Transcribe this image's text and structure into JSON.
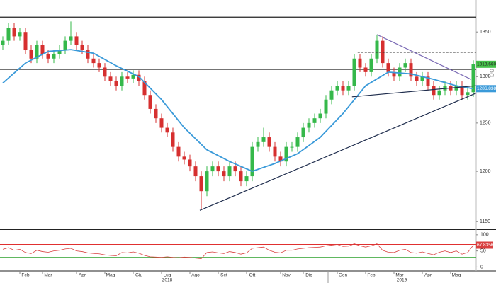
{
  "chart_data": {
    "type": "candlestick",
    "log_scale": true,
    "scale_label": "Log",
    "categories": [
      null,
      null,
      null,
      null,
      "Feb",
      null,
      null,
      null,
      "Mar",
      null,
      null,
      null,
      null,
      null,
      "Apr",
      null,
      null,
      null,
      null,
      "Mag",
      null,
      null,
      null,
      null,
      "Giu",
      null,
      null,
      null,
      null,
      "Lug",
      null,
      null,
      null,
      null,
      "Ago",
      null,
      null,
      null,
      null,
      "Set",
      null,
      null,
      null,
      null,
      "Ott",
      null,
      null,
      null,
      null,
      null,
      "Nov",
      null,
      null,
      null,
      "Dic",
      null,
      null,
      null,
      null,
      null,
      "Gen",
      null,
      null,
      null,
      null,
      "Feb",
      null,
      null,
      null,
      null,
      "Mar",
      null,
      null,
      null,
      null,
      "Apr",
      null,
      null,
      null,
      null,
      "Mag",
      null,
      null,
      null
    ],
    "year_labels": [
      "2018",
      "2019"
    ],
    "open": [
      1335,
      1340,
      1355,
      1345,
      1350,
      1330,
      1320,
      1335,
      1325,
      1320,
      1325,
      1330,
      1340,
      1345,
      1335,
      1330,
      1320,
      1315,
      1310,
      1300,
      1295,
      1290,
      1300,
      1298,
      1302,
      1295,
      1280,
      1265,
      1255,
      1245,
      1240,
      1225,
      1215,
      1212,
      1205,
      1195,
      1180,
      1200,
      1205,
      1200,
      1195,
      1205,
      1200,
      1190,
      1195,
      1225,
      1230,
      1235,
      1225,
      1215,
      1210,
      1225,
      1225,
      1235,
      1245,
      1250,
      1255,
      1260,
      1275,
      1285,
      1290,
      1285,
      1290,
      1320,
      1310,
      1305,
      1320,
      1340,
      1315,
      1305,
      1300,
      1310,
      1315,
      1300,
      1295,
      1300,
      1290,
      1280,
      1285,
      1290,
      1285,
      1290,
      1280,
      1283
    ],
    "high": [
      1345,
      1360,
      1360,
      1355,
      1355,
      1335,
      1340,
      1340,
      1330,
      1330,
      1335,
      1345,
      1362,
      1350,
      1340,
      1335,
      1325,
      1320,
      1315,
      1305,
      1300,
      1305,
      1305,
      1307,
      1307,
      1300,
      1285,
      1270,
      1260,
      1250,
      1245,
      1230,
      1220,
      1217,
      1210,
      1200,
      1205,
      1210,
      1210,
      1205,
      1210,
      1210,
      1205,
      1200,
      1230,
      1235,
      1245,
      1240,
      1230,
      1220,
      1230,
      1230,
      1240,
      1250,
      1255,
      1260,
      1265,
      1280,
      1290,
      1295,
      1295,
      1295,
      1325,
      1325,
      1315,
      1325,
      1347,
      1345,
      1320,
      1310,
      1315,
      1320,
      1320,
      1305,
      1305,
      1305,
      1295,
      1290,
      1295,
      1295,
      1295,
      1295,
      1288,
      1318
    ],
    "low": [
      1330,
      1335,
      1340,
      1340,
      1325,
      1315,
      1315,
      1320,
      1315,
      1315,
      1320,
      1325,
      1335,
      1330,
      1325,
      1315,
      1310,
      1305,
      1295,
      1290,
      1285,
      1285,
      1293,
      1293,
      1290,
      1275,
      1260,
      1250,
      1240,
      1235,
      1220,
      1210,
      1207,
      1200,
      1190,
      1162,
      1175,
      1195,
      1195,
      1190,
      1190,
      1195,
      1185,
      1185,
      1190,
      1220,
      1225,
      1220,
      1210,
      1205,
      1205,
      1220,
      1220,
      1230,
      1240,
      1245,
      1250,
      1255,
      1270,
      1280,
      1280,
      1280,
      1285,
      1305,
      1300,
      1300,
      1315,
      1310,
      1300,
      1295,
      1295,
      1305,
      1295,
      1290,
      1290,
      1285,
      1275,
      1275,
      1280,
      1280,
      1280,
      1275,
      1275,
      1278
    ],
    "close": [
      1340,
      1355,
      1345,
      1350,
      1330,
      1320,
      1335,
      1325,
      1320,
      1325,
      1330,
      1340,
      1345,
      1335,
      1330,
      1320,
      1315,
      1310,
      1300,
      1295,
      1290,
      1300,
      1298,
      1302,
      1295,
      1280,
      1265,
      1255,
      1245,
      1240,
      1225,
      1215,
      1212,
      1205,
      1195,
      1180,
      1200,
      1205,
      1200,
      1195,
      1205,
      1200,
      1190,
      1195,
      1225,
      1230,
      1235,
      1225,
      1215,
      1210,
      1225,
      1225,
      1235,
      1245,
      1250,
      1255,
      1260,
      1275,
      1285,
      1290,
      1285,
      1290,
      1320,
      1310,
      1305,
      1320,
      1340,
      1315,
      1305,
      1300,
      1310,
      1315,
      1300,
      1295,
      1300,
      1290,
      1280,
      1285,
      1290,
      1285,
      1290,
      1280,
      1283,
      1313.6603
    ],
    "up_color": "#35b84a",
    "down_color": "#d62f2f",
    "ylim": [
      1144,
      1387
    ],
    "yticks": [
      1150,
      1200,
      1250,
      1300,
      1350
    ],
    "moving_average": {
      "x": [
        0,
        4,
        8,
        12,
        16,
        20,
        24,
        28,
        32,
        36,
        40,
        44,
        48,
        52,
        56,
        60,
        64,
        68,
        72,
        76,
        80,
        83
      ],
      "values": [
        1293,
        1315,
        1328,
        1330,
        1326,
        1312,
        1300,
        1275,
        1245,
        1222,
        1210,
        1200,
        1208,
        1218,
        1235,
        1260,
        1290,
        1305,
        1303,
        1297,
        1290,
        1286.8386
      ],
      "color": "#3a9ad9"
    },
    "hlines": [
      {
        "value": 1367,
        "color": "#222222"
      },
      {
        "value": 1308,
        "color": "#222222"
      }
    ],
    "segments": [
      {
        "x": [
          62.6,
          83.5
        ],
        "y": [
          1327,
          1327
        ],
        "color": "#333333",
        "dashed": true
      },
      {
        "x": [
          34.75,
          83.5
        ],
        "y": [
          1161,
          1282
        ],
        "color": "#1f2d4d",
        "dashed": false
      },
      {
        "x": [
          66,
          82.6
        ],
        "y": [
          1347,
          1297
        ],
        "color": "#7b6bb5",
        "dashed": false
      },
      {
        "x": [
          61.6,
          83.5
        ],
        "y": [
          1278,
          1290
        ],
        "color": "#1f2d4d",
        "dashed": false
      }
    ],
    "last_price": 1313.6603,
    "last_price_color": "#46c14a",
    "ma_last": 1286.8386,
    "rsi": {
      "values": [
        55,
        60,
        52,
        55,
        45,
        42,
        52,
        48,
        46,
        50,
        52,
        56,
        58,
        50,
        48,
        44,
        42,
        41,
        38,
        36,
        35,
        45,
        44,
        47,
        43,
        36,
        32,
        31,
        30,
        32,
        30,
        29,
        31,
        30,
        28,
        26,
        45,
        47,
        44,
        42,
        48,
        45,
        40,
        44,
        58,
        60,
        62,
        52,
        46,
        44,
        52,
        52,
        56,
        58,
        60,
        61,
        62,
        66,
        68,
        70,
        64,
        65,
        72,
        66,
        62,
        66,
        72,
        52,
        46,
        45,
        52,
        55,
        45,
        43,
        47,
        42,
        38,
        46,
        50,
        45,
        50,
        40,
        45,
        67.8356
      ],
      "ylim": [
        -10,
        115
      ],
      "yticks": [
        0,
        50,
        100
      ],
      "levels": [
        70,
        30
      ],
      "level_colors": [
        "#e03030",
        "#2ca02c"
      ],
      "color": "#d94040",
      "last": 67.8356
    }
  }
}
